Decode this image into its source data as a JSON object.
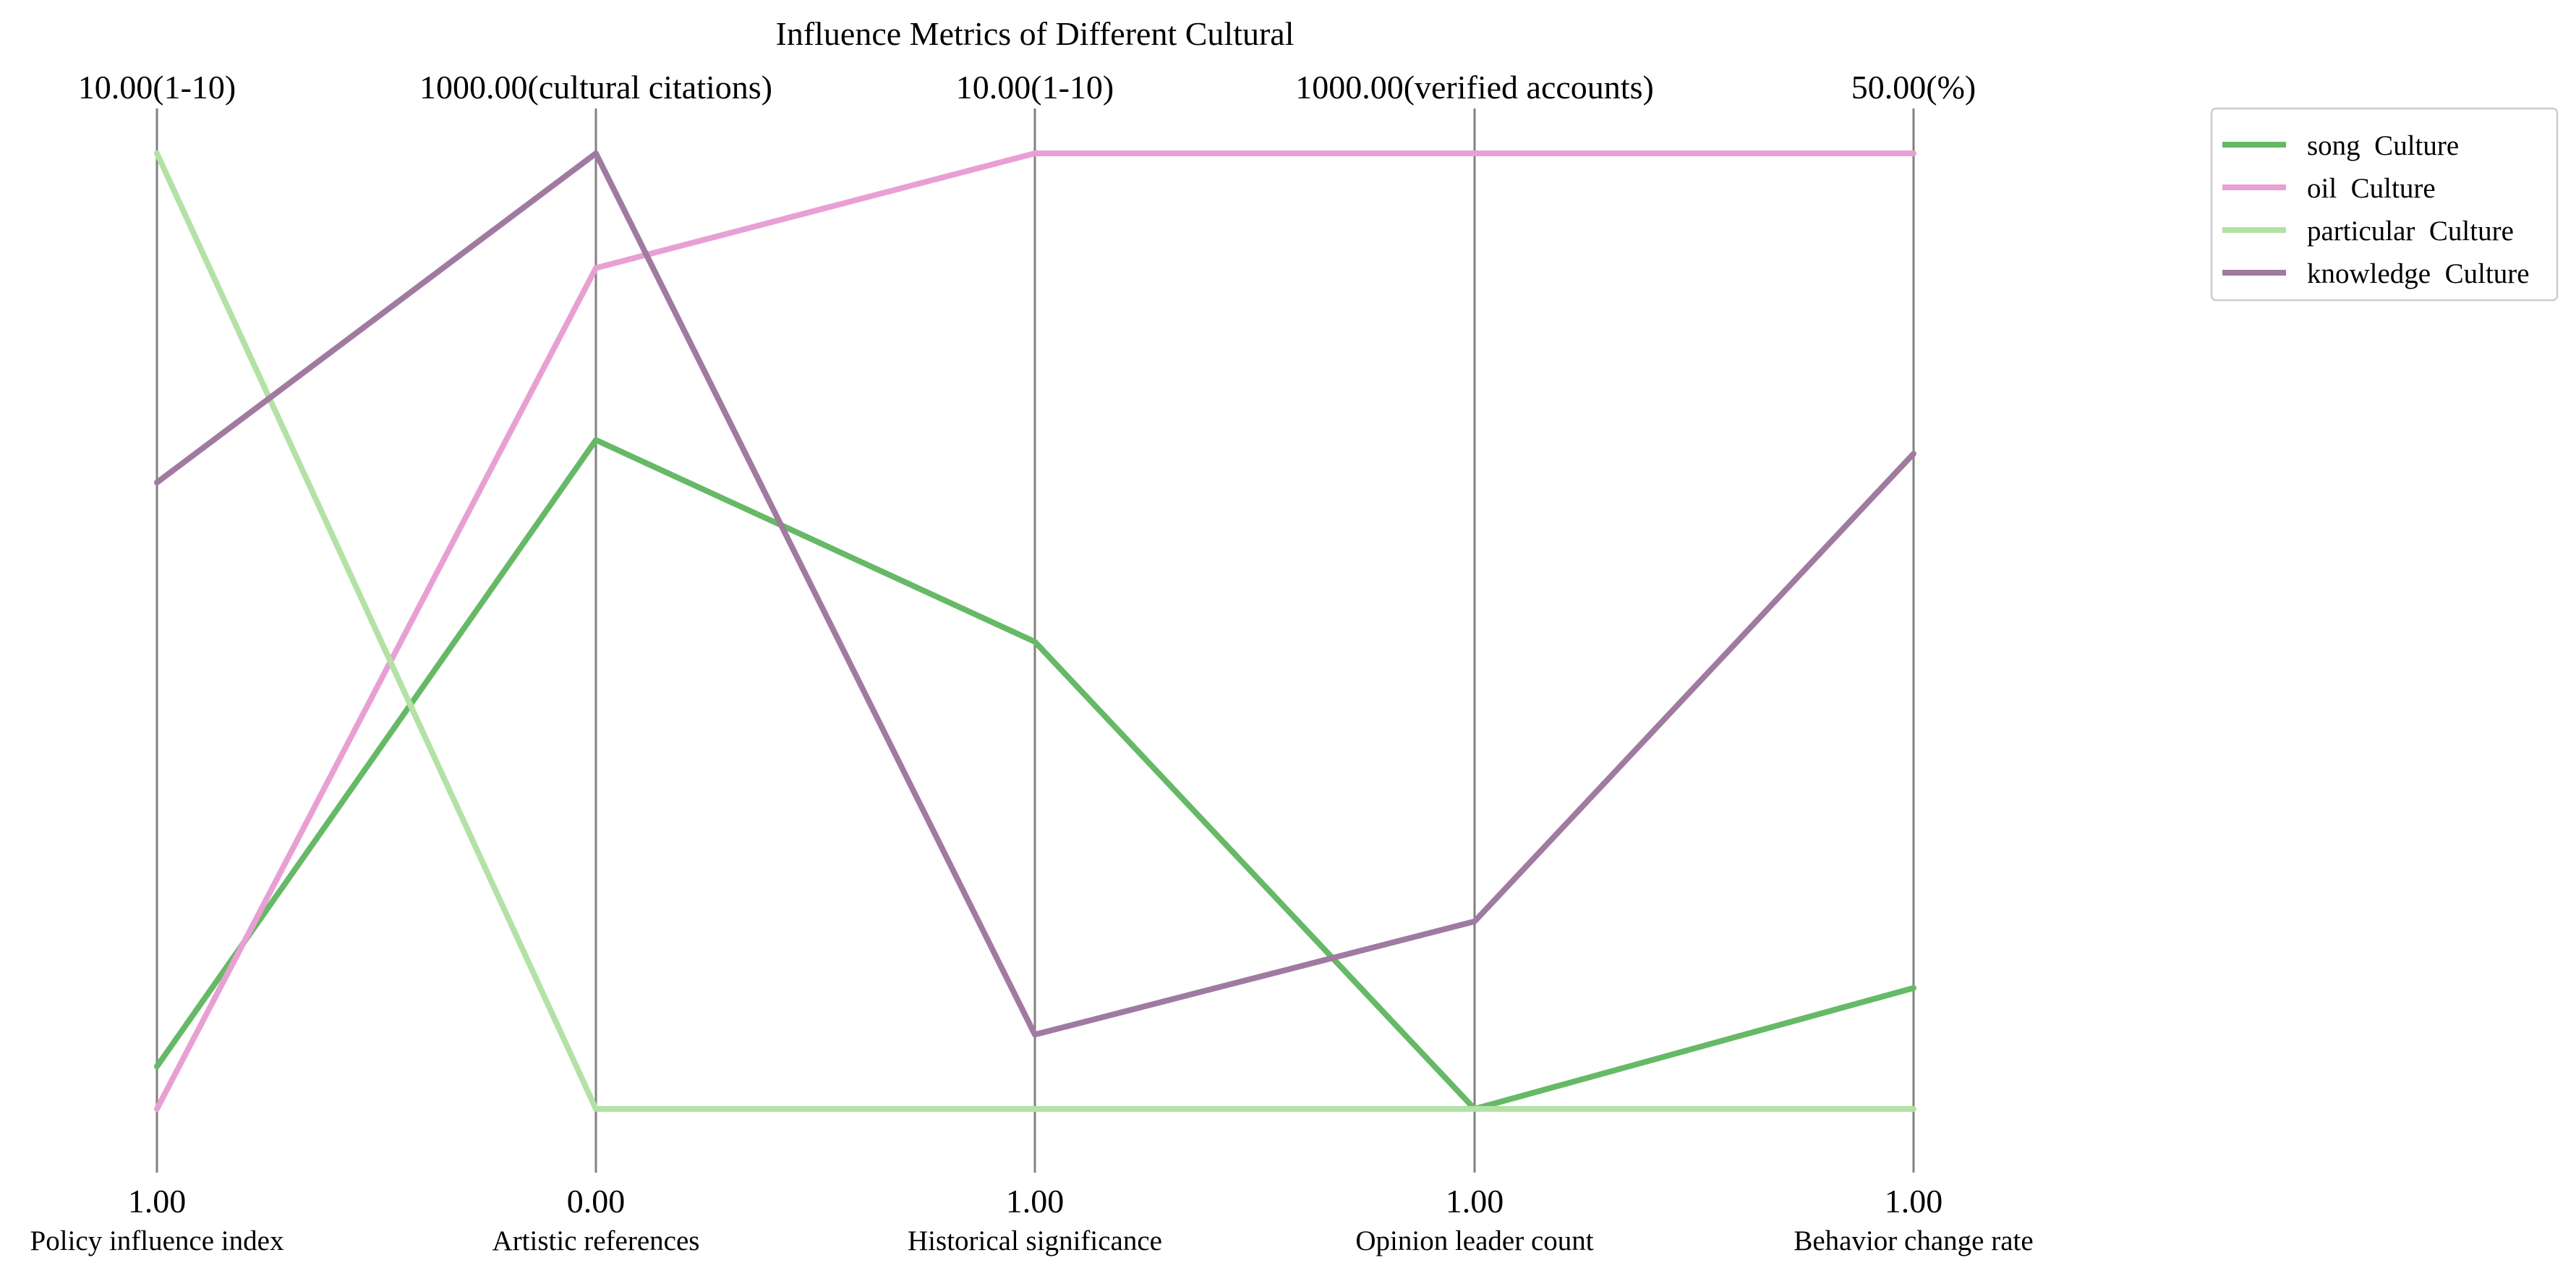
{
  "chart_data": {
    "type": "parallel-coordinates",
    "title": "Influence Metrics of Different Cultural",
    "axes": [
      {
        "label": "Policy influence index",
        "min": 1,
        "max": 10,
        "min_label": "1.00",
        "max_label": "10.00(1-10)"
      },
      {
        "label": "Artistic references",
        "min": 0,
        "max": 1000,
        "min_label": "0.00",
        "max_label": "1000.00(cultural citations)"
      },
      {
        "label": "Historical significance",
        "min": 1,
        "max": 10,
        "min_label": "1.00",
        "max_label": "10.00(1-10)"
      },
      {
        "label": "Opinion leader count",
        "min": 1,
        "max": 1000,
        "min_label": "1.00",
        "max_label": "1000.00(verified accounts)"
      },
      {
        "label": "Behavior change rate",
        "min": 1,
        "max": 50,
        "min_label": "1.00",
        "max_label": "50.00(%)"
      }
    ],
    "series": [
      {
        "name": "song  Culture",
        "color": "#66b966",
        "values": [
          1.4,
          700,
          5.4,
          1,
          7.2
        ]
      },
      {
        "name": "oil  Culture",
        "color": "#e8a0d4",
        "values": [
          1.0,
          880,
          10,
          1000,
          50
        ]
      },
      {
        "name": "particular  Culture",
        "color": "#b2e2a5",
        "values": [
          10,
          0,
          1,
          1,
          1
        ]
      },
      {
        "name": "knowledge  Culture",
        "color": "#a07aa0",
        "values": [
          6.9,
          1000,
          1.7,
          197,
          34.6
        ]
      }
    ],
    "legend_position": "top-right",
    "grid": false
  }
}
